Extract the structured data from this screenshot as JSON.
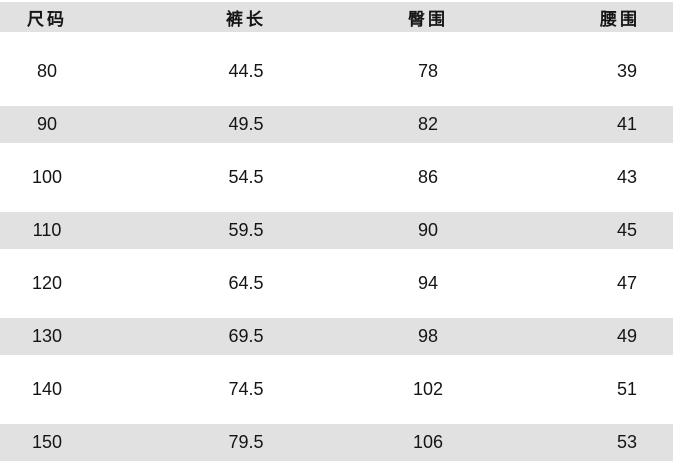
{
  "chart_data": {
    "type": "table",
    "columns": [
      "尺码",
      "裤长",
      "臀围",
      "腰围"
    ],
    "rows": [
      [
        "80",
        "44.5",
        "78",
        "39"
      ],
      [
        "90",
        "49.5",
        "82",
        "41"
      ],
      [
        "100",
        "54.5",
        "86",
        "43"
      ],
      [
        "110",
        "59.5",
        "90",
        "45"
      ],
      [
        "120",
        "64.5",
        "94",
        "47"
      ],
      [
        "130",
        "69.5",
        "98",
        "49"
      ],
      [
        "140",
        "74.5",
        "102",
        "51"
      ],
      [
        "150",
        "79.5",
        "106",
        "53"
      ]
    ],
    "layout_hints": {
      "striped_rows": "even data rows shaded",
      "header_shaded": true
    }
  },
  "colors": {
    "stripe_bg": "#e1e1e1",
    "header_bg": "#e1e1e1",
    "text": "#151515",
    "page_bg": "#ffffff"
  }
}
